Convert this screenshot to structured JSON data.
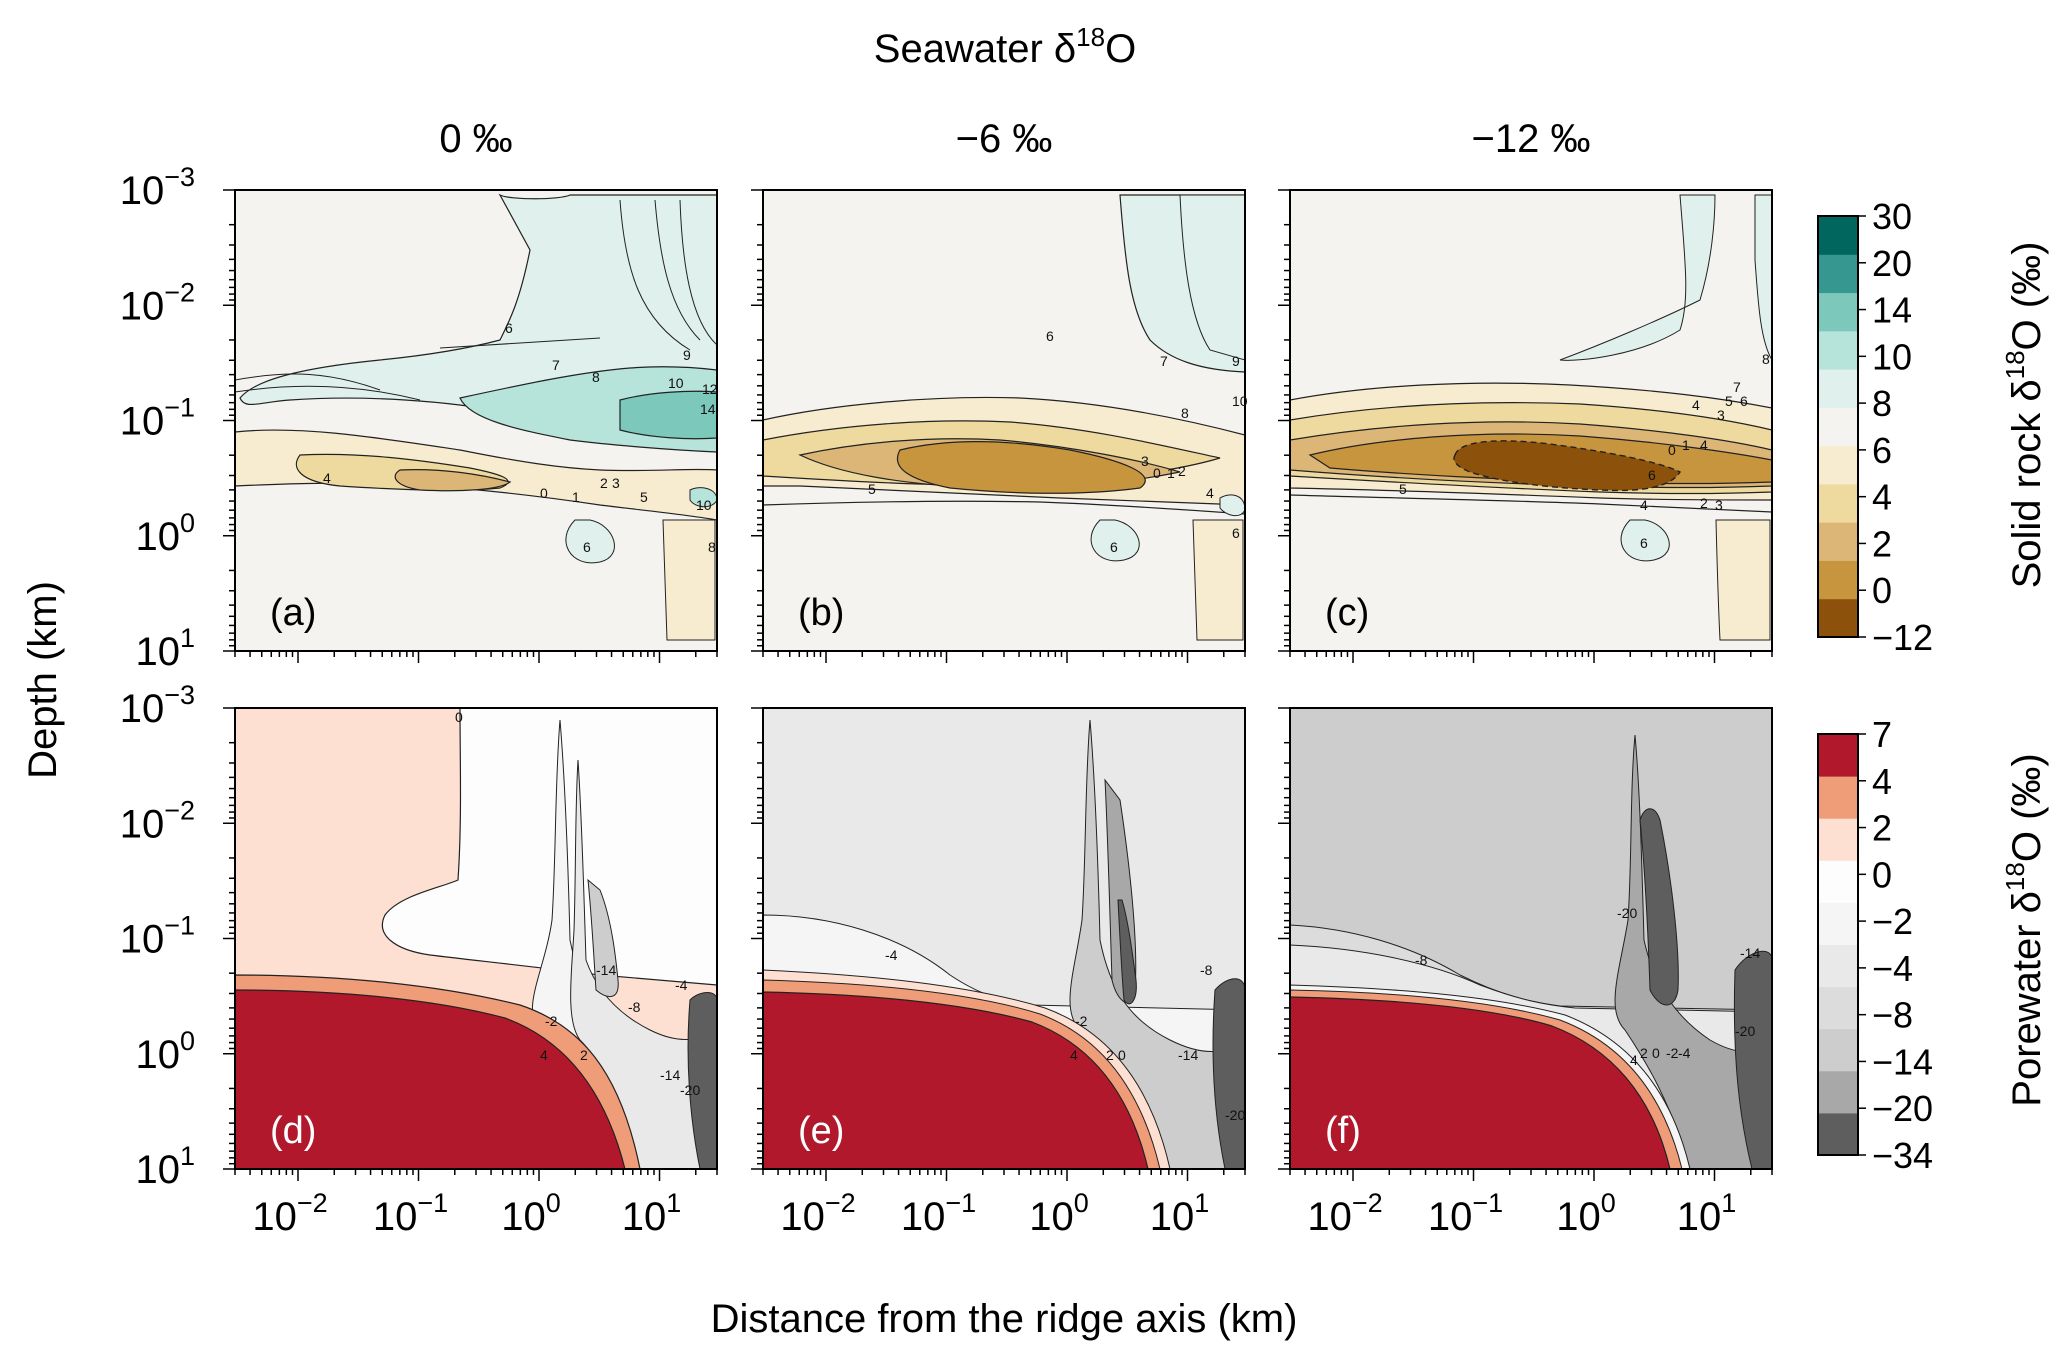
{
  "figure": {
    "title": "Seawater δ",
    "title_sup": "18",
    "title_tail": "O",
    "xlabel": "Distance from the ridge axis (km)",
    "ylabel": "Depth (km)",
    "column_titles": [
      "0 ‰",
      "−6 ‰",
      "−12 ‰"
    ]
  },
  "chart_data": [
    {
      "type": "heatmap",
      "row": "solid rock",
      "panels": [
        {
          "label": "(a)",
          "seawater_d18O": 0,
          "contour_labels": [
            "6",
            "7",
            "8",
            "9",
            "10",
            "12",
            "14",
            "4",
            "0",
            "1",
            "2",
            "3",
            "5",
            "10",
            "6",
            "8"
          ]
        },
        {
          "label": "(b)",
          "seawater_d18O": -6,
          "contour_labels": [
            "6",
            "7",
            "8",
            "9",
            "10",
            "5",
            "3",
            "0",
            "1",
            "2",
            "4",
            "6",
            "6"
          ]
        },
        {
          "label": "(c)",
          "seawater_d18O": -12,
          "contour_labels": [
            "8",
            "7",
            "6",
            "5",
            "3",
            "4",
            "4",
            "0",
            "1",
            "6",
            "5",
            "4",
            "3",
            "2",
            "6"
          ]
        }
      ],
      "x_axis": {
        "scale": "log",
        "range": [
          0.003,
          30
        ],
        "ticks": [
          0.01,
          0.1,
          1,
          10
        ]
      },
      "y_axis": {
        "scale": "log",
        "inverted": true,
        "range": [
          0.001,
          10
        ],
        "ticks": [
          0.001,
          0.01,
          0.1,
          1,
          10
        ]
      },
      "colorbar": {
        "label_main": "Solid rock δ",
        "label_sup": "18",
        "label_tail": "O (‰)",
        "levels": [
          -12,
          0,
          2,
          4,
          6,
          8,
          10,
          14,
          20,
          30
        ],
        "tick_labels": [
          "−12",
          "0",
          "2",
          "4",
          "6",
          "8",
          "10",
          "14",
          "20",
          "30"
        ],
        "colors": [
          "#8c510a",
          "#c8953f",
          "#dbb677",
          "#eeda9f",
          "#f7ecd0",
          "#f4f3ef",
          "#dff0ed",
          "#b6e3da",
          "#7cc9bc",
          "#35978f",
          "#01665e"
        ]
      }
    },
    {
      "type": "heatmap",
      "row": "porewater",
      "panels": [
        {
          "label": "(d)",
          "seawater_d18O": 0,
          "contour_labels": [
            "0",
            "-14",
            "-4",
            "-8",
            "-2",
            "4",
            "2",
            "-14",
            "-20"
          ]
        },
        {
          "label": "(e)",
          "seawater_d18O": -6,
          "contour_labels": [
            "-4",
            "-8",
            "-2",
            "-14",
            "4",
            "2",
            "0",
            "-20"
          ]
        },
        {
          "label": "(f)",
          "seawater_d18O": -12,
          "contour_labels": [
            "-8",
            "-20",
            "-14",
            "-20",
            "4",
            "2",
            "0",
            "-2",
            "-4"
          ]
        }
      ],
      "x_axis": {
        "scale": "log",
        "range": [
          0.003,
          30
        ],
        "ticks": [
          0.01,
          0.1,
          1,
          10
        ]
      },
      "y_axis": {
        "scale": "log",
        "inverted": true,
        "range": [
          0.001,
          10
        ],
        "ticks": [
          0.001,
          0.01,
          0.1,
          1,
          10
        ]
      },
      "colorbar": {
        "label_main": "Porewater δ",
        "label_sup": "18",
        "label_tail": "O (‰)",
        "levels": [
          -34,
          -20,
          -14,
          -8,
          -4,
          -2,
          0,
          2,
          4,
          7
        ],
        "tick_labels": [
          "−34",
          "−20",
          "−14",
          "−8",
          "−4",
          "−2",
          "0",
          "2",
          "4",
          "7"
        ],
        "colors": [
          "#5e5e5e",
          "#a8a8a8",
          "#cdcdcd",
          "#dcdcdc",
          "#e9e9e9",
          "#f5f5f5",
          "#fdfdfd",
          "#fde0d2",
          "#ef9c79",
          "#b2182b"
        ]
      }
    }
  ],
  "tick_text": {
    "x": [
      {
        "b": "10",
        "e": "−2"
      },
      {
        "b": "10",
        "e": "−1"
      },
      {
        "b": "10",
        "e": "0"
      },
      {
        "b": "10",
        "e": "1"
      }
    ],
    "y": [
      {
        "b": "10",
        "e": "−3"
      },
      {
        "b": "10",
        "e": "−2"
      },
      {
        "b": "10",
        "e": "−1"
      },
      {
        "b": "10",
        "e": "0"
      },
      {
        "b": "10",
        "e": "1"
      }
    ]
  }
}
